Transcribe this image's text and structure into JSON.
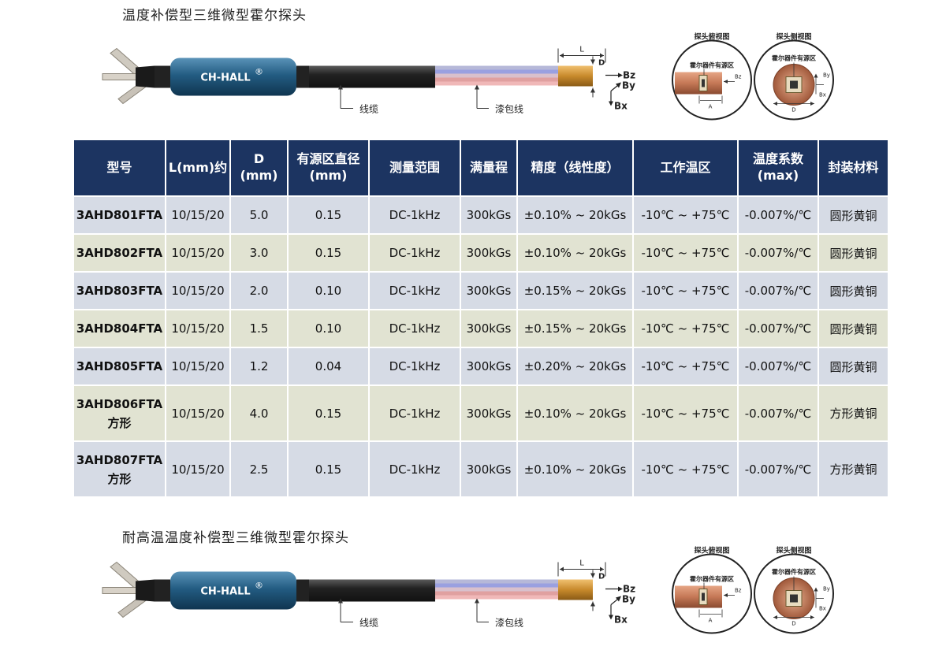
{
  "section1": {
    "title": "温度补偿型三维微型霍尔探头"
  },
  "section2": {
    "title": "耐高温温度补偿型三维微型霍尔探头"
  },
  "probe": {
    "brand": "CH-HALL",
    "reg_mark": "®",
    "cable_label": "线缆",
    "wire_label": "漆包线",
    "dim_l": "L",
    "dim_d": "D",
    "axis_bz": "Bz",
    "axis_by": "By",
    "axis_bx": "Bx",
    "top_view_title": "探头俯视图",
    "side_view_title": "探头侧视图",
    "active_area": "霍尔器件有源区",
    "top_dim": "A",
    "side_dim": "D",
    "top_bz": "Bz",
    "side_by": "By",
    "side_bx": "Bx"
  },
  "table": {
    "headers": [
      {
        "line1": "型号",
        "line2": ""
      },
      {
        "line1": "L(mm)约",
        "line2": ""
      },
      {
        "line1": "D",
        "line2": "(mm)"
      },
      {
        "line1": "有源区直径",
        "line2": "(mm)"
      },
      {
        "line1": "测量范围",
        "line2": ""
      },
      {
        "line1": "满量程",
        "line2": ""
      },
      {
        "line1": "精度（线性度）",
        "line2": ""
      },
      {
        "line1": "工作温区",
        "line2": ""
      },
      {
        "line1": "温度系数",
        "line2": "(max)"
      },
      {
        "line1": "封装材料",
        "line2": ""
      }
    ],
    "rows": [
      {
        "model": "3AHD801FTA",
        "model2": "",
        "l": "10/15/20",
        "d": "5.0",
        "area": "0.15",
        "range": "DC-1kHz",
        "full": "300kGs",
        "acc": "±0.10% ~ 20kGs",
        "temp": "-10℃ ~ +75℃",
        "coef": "-0.007%/℃",
        "pkg": "圆形黄铜"
      },
      {
        "model": "3AHD802FTA",
        "model2": "",
        "l": "10/15/20",
        "d": "3.0",
        "area": "0.15",
        "range": "DC-1kHz",
        "full": "300kGs",
        "acc": "±0.10% ~ 20kGs",
        "temp": "-10℃ ~ +75℃",
        "coef": "-0.007%/℃",
        "pkg": "圆形黄铜"
      },
      {
        "model": "3AHD803FTA",
        "model2": "",
        "l": "10/15/20",
        "d": "2.0",
        "area": "0.10",
        "range": "DC-1kHz",
        "full": "300kGs",
        "acc": "±0.15% ~ 20kGs",
        "temp": "-10℃ ~ +75℃",
        "coef": "-0.007%/℃",
        "pkg": "圆形黄铜"
      },
      {
        "model": "3AHD804FTA",
        "model2": "",
        "l": "10/15/20",
        "d": "1.5",
        "area": "0.10",
        "range": "DC-1kHz",
        "full": "300kGs",
        "acc": "±0.15% ~ 20kGs",
        "temp": "-10℃ ~ +75℃",
        "coef": "-0.007%/℃",
        "pkg": "圆形黄铜"
      },
      {
        "model": "3AHD805FTA",
        "model2": "",
        "l": "10/15/20",
        "d": "1.2",
        "area": "0.04",
        "range": "DC-1kHz",
        "full": "300kGs",
        "acc": "±0.20% ~ 20kGs",
        "temp": "-10℃ ~ +75℃",
        "coef": "-0.007%/℃",
        "pkg": "圆形黄铜"
      },
      {
        "model": "3AHD806FTA",
        "model2": "方形",
        "l": "10/15/20",
        "d": "4.0",
        "area": "0.15",
        "range": "DC-1kHz",
        "full": "300kGs",
        "acc": "±0.10% ~ 20kGs",
        "temp": "-10℃ ~ +75℃",
        "coef": "-0.007%/℃",
        "pkg": "方形黄铜"
      },
      {
        "model": "3AHD807FTA",
        "model2": "方形",
        "l": "10/15/20",
        "d": "2.5",
        "area": "0.15",
        "range": "DC-1kHz",
        "full": "300kGs",
        "acc": "±0.10% ~ 20kGs",
        "temp": "-10℃ ~ +75℃",
        "coef": "-0.007%/℃",
        "pkg": "方形黄铜"
      }
    ]
  }
}
